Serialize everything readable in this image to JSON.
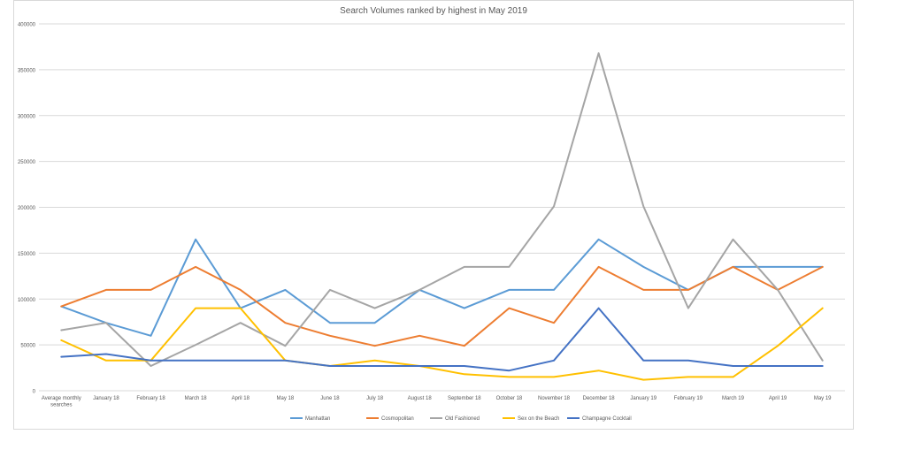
{
  "chart_data": {
    "type": "line",
    "title": "Search Volumes ranked by highest in  May 2019",
    "xlabel": "",
    "ylabel": "",
    "ylim": [
      0,
      400000
    ],
    "yticks": [
      0,
      50000,
      100000,
      150000,
      200000,
      250000,
      300000,
      350000,
      400000
    ],
    "ytick_labels": [
      "0",
      "50000",
      "100000",
      "150000",
      "200000",
      "250000",
      "300000",
      "350000",
      "400000"
    ],
    "grid": true,
    "legend_position": "bottom",
    "categories": [
      "Average monthly searches",
      "January 18",
      "February 18",
      "March 18",
      "April 18",
      "May 18",
      "June 18",
      "July 18",
      "August 18",
      "September 18",
      "October 18",
      "November 18",
      "December 18",
      "January 19",
      "February 19",
      "March 19",
      "April 19",
      "May 19"
    ],
    "series": [
      {
        "name": "Manhattan",
        "color": "#5b9bd5",
        "values": [
          92000,
          74000,
          60000,
          165000,
          90000,
          110000,
          74000,
          74000,
          110000,
          90000,
          110000,
          110000,
          165000,
          135000,
          110000,
          135000,
          135000,
          135000
        ]
      },
      {
        "name": "Cosmopolitan",
        "color": "#ed7d31",
        "values": [
          92000,
          110000,
          110000,
          135000,
          110000,
          74000,
          60000,
          49000,
          60000,
          49000,
          90000,
          74000,
          135000,
          110000,
          110000,
          135000,
          110000,
          135000
        ]
      },
      {
        "name": "Old Fashioned",
        "color": "#a5a5a5",
        "values": [
          66000,
          74000,
          27000,
          50000,
          74000,
          49000,
          110000,
          90000,
          110000,
          135000,
          135000,
          201000,
          368000,
          201000,
          90000,
          165000,
          110000,
          33000
        ]
      },
      {
        "name": "Sex on the Beach",
        "color": "#ffc000",
        "values": [
          55000,
          33000,
          33000,
          90000,
          90000,
          33000,
          27000,
          33000,
          27000,
          18000,
          15000,
          15000,
          22000,
          12000,
          15000,
          15000,
          49000,
          90000
        ]
      },
      {
        "name": "Champagne Cocktail",
        "color": "#4472c4",
        "values": [
          37000,
          40000,
          33000,
          33000,
          33000,
          33000,
          27000,
          27000,
          27000,
          27000,
          22000,
          33000,
          90000,
          33000,
          33000,
          27000,
          27000,
          27000
        ]
      }
    ]
  }
}
